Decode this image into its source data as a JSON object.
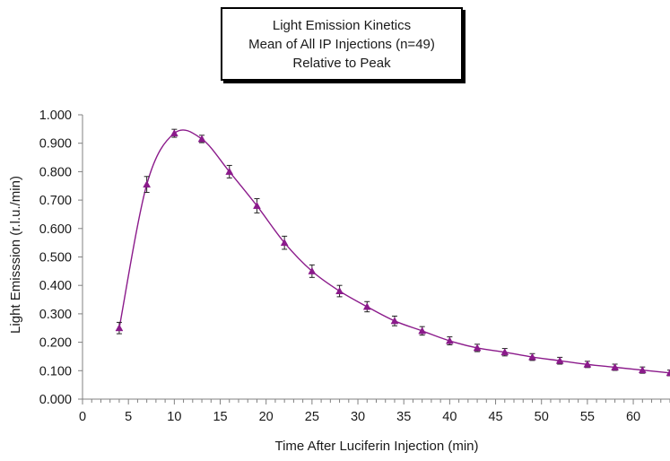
{
  "chart_data": {
    "type": "line",
    "title_lines": [
      "Light Emission Kinetics",
      "Mean of All IP Injections (n=49)",
      "Relative to Peak"
    ],
    "xlabel": "Time After Luciferin Injection (min)",
    "ylabel": "Light Emisssion (r.l.u./min)",
    "xlim": [
      0,
      64
    ],
    "ylim": [
      0,
      1
    ],
    "xticks": [
      "0",
      "5",
      "10",
      "15",
      "20",
      "25",
      "30",
      "35",
      "40",
      "45",
      "50",
      "55",
      "60"
    ],
    "yticks": [
      "0.000",
      "0.100",
      "0.200",
      "0.300",
      "0.400",
      "0.500",
      "0.600",
      "0.700",
      "0.800",
      "0.900",
      "1.000"
    ],
    "grid": false,
    "marker": "triangle",
    "line_color": "#8b1a8b",
    "series": [
      {
        "x": [
          4,
          7,
          10,
          13,
          16,
          19,
          22,
          25,
          28,
          31,
          34,
          37,
          40,
          43,
          46,
          49,
          52,
          55,
          58,
          61,
          64
        ],
        "y": [
          0.25,
          0.755,
          0.935,
          0.915,
          0.8,
          0.68,
          0.55,
          0.45,
          0.38,
          0.325,
          0.275,
          0.24,
          0.205,
          0.18,
          0.165,
          0.148,
          0.135,
          0.122,
          0.112,
          0.102,
          0.092
        ],
        "err": [
          0.02,
          0.028,
          0.014,
          0.013,
          0.022,
          0.025,
          0.023,
          0.022,
          0.02,
          0.018,
          0.017,
          0.015,
          0.014,
          0.013,
          0.013,
          0.012,
          0.012,
          0.011,
          0.011,
          0.011,
          0.01
        ]
      }
    ]
  }
}
